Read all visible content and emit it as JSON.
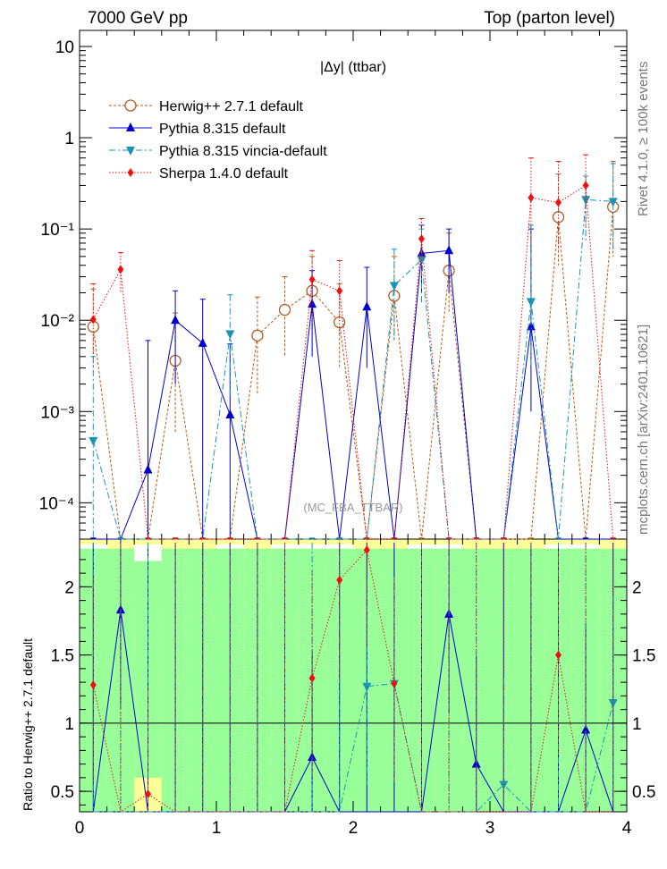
{
  "header": {
    "energy": "7000 GeV pp",
    "process": "Top (parton level)"
  },
  "side_labels": {
    "rivet": "Rivet 4.1.0, ≥ 100k events",
    "mcplots": "mcplots.cern.ch [arXiv:2401.10621]"
  },
  "chart_data": {
    "type": "line",
    "title": "|Δy| (ttbar)",
    "watermark": "(MC_FBA_TTBAR)",
    "xlabel": "",
    "ylabel": "",
    "ratio_ylabel": "Ratio to Herwig++ 2.7.1 default",
    "xlim": [
      0,
      4
    ],
    "ylim": [
      4e-05,
      15
    ],
    "yscale": "log",
    "ratio_ylim": [
      0.35,
      2.35
    ],
    "x_ticks": [
      "0",
      "1",
      "2",
      "3",
      "4"
    ],
    "y_ticks": [
      {
        "value": 10,
        "label": "10"
      },
      {
        "value": 1,
        "label": "1"
      },
      {
        "value": 0.1,
        "label": "10⁻¹"
      },
      {
        "value": 0.01,
        "label": "10⁻²"
      },
      {
        "value": 0.001,
        "label": "10⁻³"
      },
      {
        "value": 0.0001,
        "label": "10⁻⁴"
      }
    ],
    "ratio_ticks": [
      {
        "value": 0.5,
        "label": "0.5"
      },
      {
        "value": 1,
        "label": "1"
      },
      {
        "value": 1.5,
        "label": "1.5"
      },
      {
        "value": 2,
        "label": "2"
      }
    ],
    "x": [
      0.1,
      0.3,
      0.5,
      0.7,
      0.9,
      1.1,
      1.3,
      1.5,
      1.7,
      1.9,
      2.1,
      2.3,
      2.5,
      2.7,
      2.9,
      3.1,
      3.3,
      3.5,
      3.7,
      3.9
    ],
    "series": [
      {
        "name": "Herwig++ 2.7.1 default",
        "color": "#b15c1a",
        "marker": "circle",
        "dash": "3,2",
        "values": [
          0.0085,
          null,
          null,
          0.0036,
          null,
          null,
          0.0068,
          0.013,
          0.021,
          0.0095,
          null,
          0.0185,
          null,
          0.035,
          null,
          null,
          null,
          0.135,
          null,
          0.175
        ],
        "err_hi": [
          0.022,
          null,
          null,
          0.012,
          null,
          null,
          0.018,
          0.03,
          0.05,
          0.025,
          null,
          0.05,
          null,
          0.09,
          null,
          null,
          null,
          0.4,
          null,
          0.55
        ],
        "err_lo": [
          0.003,
          null,
          null,
          0.0006,
          null,
          null,
          0.0015,
          0.004,
          0.008,
          0.003,
          null,
          0.006,
          null,
          0.012,
          null,
          null,
          null,
          0.04,
          null,
          0.05
        ]
      },
      {
        "name": "Pythia 8.315 default",
        "color": "#0000cc",
        "marker": "triangle-up",
        "dash": "",
        "values": [
          null,
          null,
          0.00023,
          0.01,
          0.0056,
          0.00092,
          null,
          null,
          0.015,
          null,
          0.014,
          null,
          0.054,
          0.058,
          null,
          null,
          0.0085,
          null,
          null,
          null
        ],
        "err_hi": [
          null,
          null,
          0.006,
          0.021,
          0.017,
          0.0055,
          null,
          null,
          0.035,
          null,
          0.038,
          null,
          0.11,
          0.1,
          null,
          null,
          0.1,
          null,
          null,
          null
        ],
        "err_lo": [
          null,
          null,
          null,
          0.002,
          null,
          null,
          null,
          null,
          0.004,
          null,
          0.003,
          null,
          0.02,
          0.02,
          null,
          null,
          0.001,
          null,
          null,
          null
        ]
      },
      {
        "name": "Pythia 8.315 vincia-default",
        "color": "#1a94b5",
        "marker": "triangle-down",
        "dash": "7,3,2,3",
        "values": [
          0.00048,
          null,
          null,
          null,
          null,
          0.0071,
          null,
          null,
          null,
          null,
          null,
          0.024,
          0.046,
          null,
          null,
          null,
          0.016,
          null,
          0.21,
          0.2
        ],
        "err_hi": [
          0.004,
          null,
          null,
          null,
          null,
          0.019,
          null,
          null,
          null,
          null,
          null,
          0.06,
          0.1,
          null,
          null,
          null,
          0.11,
          null,
          0.38,
          0.52
        ],
        "err_lo": [
          null,
          null,
          null,
          null,
          null,
          0.0015,
          null,
          null,
          null,
          null,
          null,
          0.006,
          0.015,
          null,
          null,
          null,
          0.003,
          null,
          0.07,
          0.06
        ]
      },
      {
        "name": "Sherpa 1.4.0 default",
        "color": "#ee1111",
        "marker": "diamond",
        "dash": "1.5,2",
        "values": [
          0.0102,
          0.036,
          null,
          null,
          null,
          null,
          null,
          null,
          0.028,
          0.021,
          null,
          null,
          0.078,
          null,
          null,
          null,
          0.22,
          0.195,
          0.3,
          null
        ],
        "err_hi": [
          0.025,
          0.055,
          null,
          null,
          null,
          null,
          null,
          null,
          0.058,
          0.045,
          null,
          null,
          0.13,
          null,
          null,
          null,
          0.6,
          0.55,
          0.65,
          null
        ],
        "err_lo": [
          0.004,
          0.02,
          null,
          null,
          null,
          null,
          null,
          null,
          0.01,
          0.007,
          null,
          null,
          0.03,
          null,
          null,
          null,
          0.07,
          0.06,
          0.1,
          null
        ]
      }
    ],
    "ratio_series": [
      {
        "name": "Pythia 8.315 default",
        "values": [
          null,
          1.83,
          null,
          null,
          null,
          null,
          null,
          null,
          0.75,
          null,
          null,
          null,
          null,
          1.8,
          0.7,
          null,
          null,
          null,
          0.95,
          null
        ]
      },
      {
        "name": "Pythia 8.315 vincia-default",
        "values": [
          null,
          null,
          null,
          null,
          null,
          null,
          null,
          null,
          null,
          null,
          1.27,
          1.29,
          null,
          null,
          null,
          0.55,
          null,
          null,
          null,
          1.15
        ]
      },
      {
        "name": "Sherpa 1.4.0 default",
        "values": [
          1.28,
          null,
          0.48,
          null,
          null,
          null,
          null,
          null,
          1.33,
          2.05,
          2.27,
          1.29,
          null,
          null,
          null,
          null,
          null,
          1.5,
          null,
          null
        ]
      }
    ],
    "ratio_bands": {
      "green_hi": [
        2.28,
        2.28,
        2.28,
        2.28,
        2.28,
        2.28,
        2.28,
        2.28,
        2.28,
        2.28,
        2.28,
        2.28,
        2.28,
        2.28,
        2.28,
        2.28,
        2.28,
        2.28,
        2.28,
        2.28
      ],
      "green_lo": [
        0.35,
        0.35,
        0.35,
        0.35,
        0.35,
        0.35,
        0.35,
        0.35,
        0.35,
        0.35,
        0.35,
        0.35,
        0.35,
        0.35,
        0.35,
        0.35,
        0.35,
        0.35,
        0.35,
        0.35
      ],
      "yellow_hi": [
        1.97,
        2.35,
        1.87,
        2.35,
        2.35,
        2.17,
        2.35,
        1.97,
        1.82,
        2.17,
        2.35,
        2.35,
        2.17,
        2.19,
        2.35,
        2.35,
        2.35,
        1.97,
        1.92,
        2.35
      ],
      "yellow_lo": [
        0.35,
        0.35,
        0.35,
        0.35,
        0.35,
        0.35,
        0.35,
        0.35,
        0.35,
        0.35,
        0.35,
        0.35,
        0.35,
        0.35,
        0.35,
        0.35,
        0.35,
        0.35,
        0.35,
        0.35
      ],
      "white_hi": [
        2.35,
        2.35,
        2.35,
        2.35,
        2.35,
        2.35,
        2.35,
        2.35,
        2.35,
        2.35,
        2.35,
        2.35,
        2.35,
        2.35,
        2.35,
        2.35,
        2.35,
        2.35,
        2.35,
        2.35
      ],
      "white_lo": [
        2.35,
        2.35,
        2.19,
        2.35,
        2.35,
        2.35,
        2.35,
        2.35,
        2.35,
        2.35,
        2.35,
        2.35,
        2.35,
        2.35,
        2.35,
        2.35,
        2.35,
        2.35,
        2.35,
        2.35
      ],
      "yellow_low_hi": [
        0.35,
        0.35,
        0.6,
        0.35,
        0.35,
        0.35,
        0.35,
        0.35,
        0.35,
        0.35,
        0.35,
        0.35,
        0.35,
        0.35,
        0.35,
        0.35,
        0.35,
        0.35,
        0.35,
        0.35
      ]
    }
  }
}
